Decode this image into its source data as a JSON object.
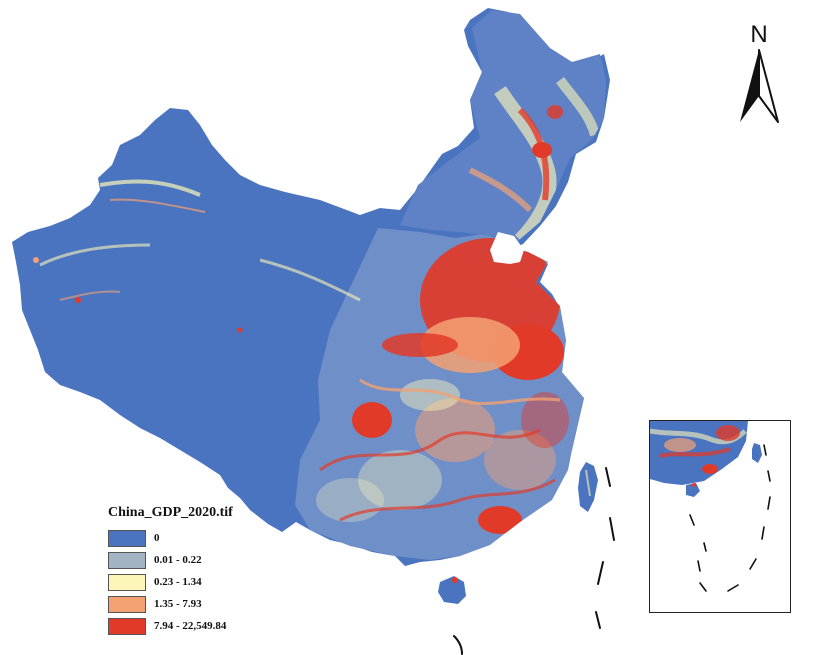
{
  "legend": {
    "title": "China_GDP_2020.tif",
    "classes": [
      {
        "label": "0",
        "color": "#4a74c0"
      },
      {
        "label": "0.01 - 0.22",
        "color": "#a3b3c3"
      },
      {
        "label": "0.23 - 1.34",
        "color": "#fbf6b8"
      },
      {
        "label": "1.35 - 7.93",
        "color": "#f3a173"
      },
      {
        "label": "7.94 - 22,549.84",
        "color": "#e23a28"
      }
    ]
  },
  "north_arrow": {
    "label": "N",
    "icon": "north-arrow-icon"
  },
  "colors": {
    "land": "#4a74c0",
    "low": "#a3b3c3",
    "mid": "#fbf6b8",
    "high": "#f3a173",
    "very_high": "#e23a28",
    "boundary_lines": "#111111"
  }
}
